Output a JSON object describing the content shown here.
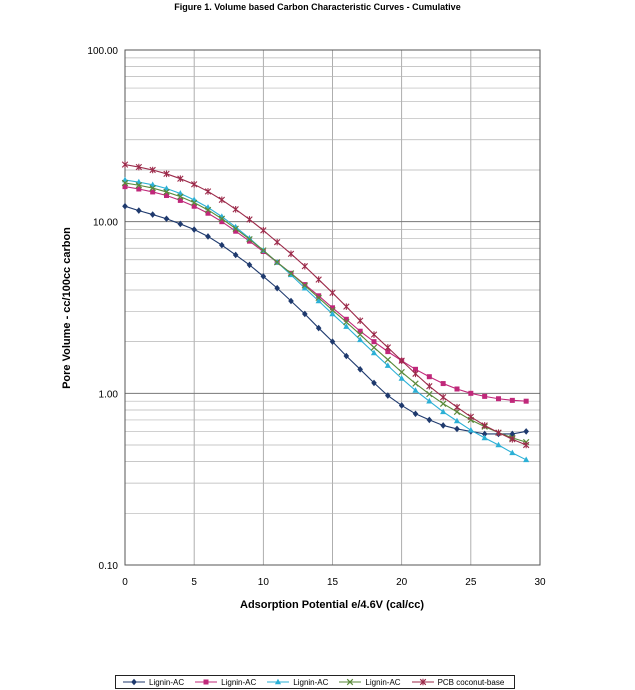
{
  "chart_data": {
    "type": "line",
    "title": "Figure 1. Volume based Carbon Characteristic Curves - Cumulative",
    "xlabel": "Adsorption Potential e/4.6V (cal/cc)",
    "ylabel": "Pore Volume - cc/100cc carbon",
    "xlim": [
      0,
      30
    ],
    "ylim": [
      0.1,
      100
    ],
    "y_scale": "log",
    "grid": true,
    "legend_position": "bottom",
    "x_ticks": [
      "0",
      "5",
      "10",
      "15",
      "20",
      "25",
      "30"
    ],
    "y_ticks": [
      "100.00",
      "10.00",
      "1.00",
      "0.10"
    ],
    "x": [
      0,
      1,
      2,
      3,
      4,
      5,
      6,
      7,
      8,
      9,
      10,
      11,
      12,
      13,
      14,
      15,
      16,
      17,
      18,
      19,
      20,
      21,
      22,
      23,
      24,
      25,
      26,
      27,
      28,
      29
    ],
    "series": [
      {
        "name": "Lignin-AC",
        "marker": "diamond",
        "color": "#1f3a6e",
        "values": [
          12.3,
          11.6,
          11.0,
          10.4,
          9.7,
          9.0,
          8.2,
          7.3,
          6.4,
          5.6,
          4.8,
          4.1,
          3.45,
          2.9,
          2.4,
          2.0,
          1.65,
          1.38,
          1.15,
          0.97,
          0.85,
          0.76,
          0.7,
          0.65,
          0.62,
          0.6,
          0.58,
          0.58,
          0.58,
          0.6
        ]
      },
      {
        "name": "Lignin-AC",
        "marker": "square",
        "color": "#c0287a",
        "values": [
          16.0,
          15.5,
          14.9,
          14.2,
          13.3,
          12.3,
          11.2,
          10.0,
          8.8,
          7.7,
          6.7,
          5.8,
          5.0,
          4.3,
          3.7,
          3.15,
          2.7,
          2.3,
          2.0,
          1.75,
          1.55,
          1.38,
          1.25,
          1.14,
          1.06,
          1.0,
          0.96,
          0.93,
          0.91,
          0.9
        ]
      },
      {
        "name": "Lignin-AC",
        "marker": "triangle",
        "color": "#2bb0d6",
        "values": [
          17.5,
          17.0,
          16.4,
          15.6,
          14.6,
          13.4,
          12.1,
          10.7,
          9.3,
          8.0,
          6.8,
          5.8,
          4.9,
          4.1,
          3.45,
          2.9,
          2.45,
          2.05,
          1.72,
          1.45,
          1.22,
          1.04,
          0.9,
          0.78,
          0.69,
          0.61,
          0.55,
          0.5,
          0.45,
          0.41
        ]
      },
      {
        "name": "Lignin-AC",
        "marker": "x",
        "color": "#5a8a3a",
        "values": [
          16.8,
          16.3,
          15.7,
          14.9,
          14.0,
          12.9,
          11.7,
          10.4,
          9.1,
          7.9,
          6.8,
          5.8,
          5.0,
          4.25,
          3.6,
          3.05,
          2.6,
          2.2,
          1.85,
          1.57,
          1.33,
          1.14,
          0.99,
          0.87,
          0.78,
          0.7,
          0.64,
          0.59,
          0.55,
          0.52
        ]
      },
      {
        "name": "PCB coconut-base",
        "marker": "star",
        "color": "#9c2a4a",
        "values": [
          21.5,
          20.8,
          20.0,
          19.0,
          17.8,
          16.5,
          15.0,
          13.4,
          11.8,
          10.3,
          8.9,
          7.6,
          6.5,
          5.5,
          4.6,
          3.85,
          3.2,
          2.65,
          2.2,
          1.85,
          1.55,
          1.3,
          1.1,
          0.95,
          0.83,
          0.73,
          0.65,
          0.59,
          0.54,
          0.5
        ]
      }
    ]
  }
}
